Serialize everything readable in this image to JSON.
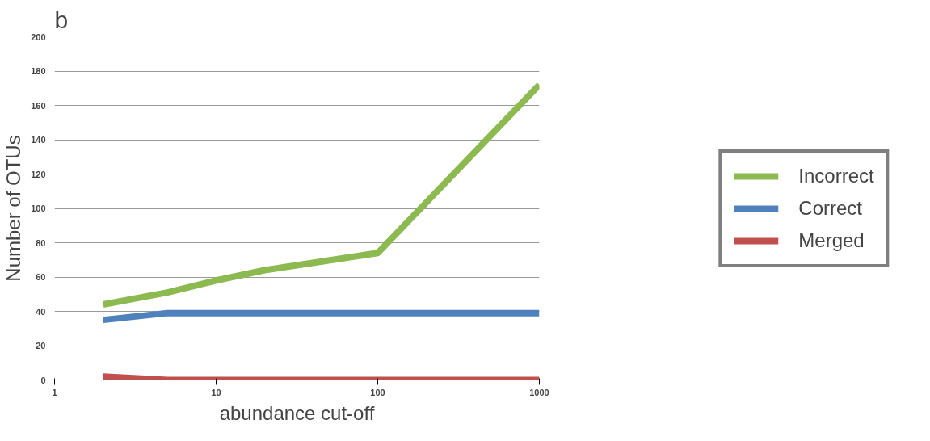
{
  "chart_data": {
    "type": "line",
    "title": "b",
    "xlabel": "abundance cut-off",
    "ylabel": "Number of OTUs",
    "log": "x",
    "xlim": [
      1,
      1000
    ],
    "xticks": [
      1,
      10,
      100,
      1000
    ],
    "ylim": [
      0,
      200
    ],
    "yticks": [
      0,
      20,
      40,
      60,
      80,
      100,
      120,
      140,
      160,
      180,
      200
    ],
    "grid": "y",
    "legend": "right",
    "line_style": "solid",
    "marker": "none",
    "series": [
      {
        "name": "Incorrect",
        "color": "#8db951",
        "x": [
          2,
          5,
          10,
          20,
          100,
          1000
        ],
        "values": [
          44,
          51,
          58,
          64,
          74,
          172
        ]
      },
      {
        "name": "Correct",
        "color": "#4f81bd",
        "x": [
          2,
          5,
          10,
          100,
          1000
        ],
        "values": [
          35,
          39,
          39,
          39,
          39
        ]
      },
      {
        "name": "Merged",
        "color": "#c0504d",
        "x": [
          2,
          5,
          10,
          100,
          1000
        ],
        "values": [
          2,
          0,
          0,
          0,
          0
        ]
      }
    ]
  }
}
